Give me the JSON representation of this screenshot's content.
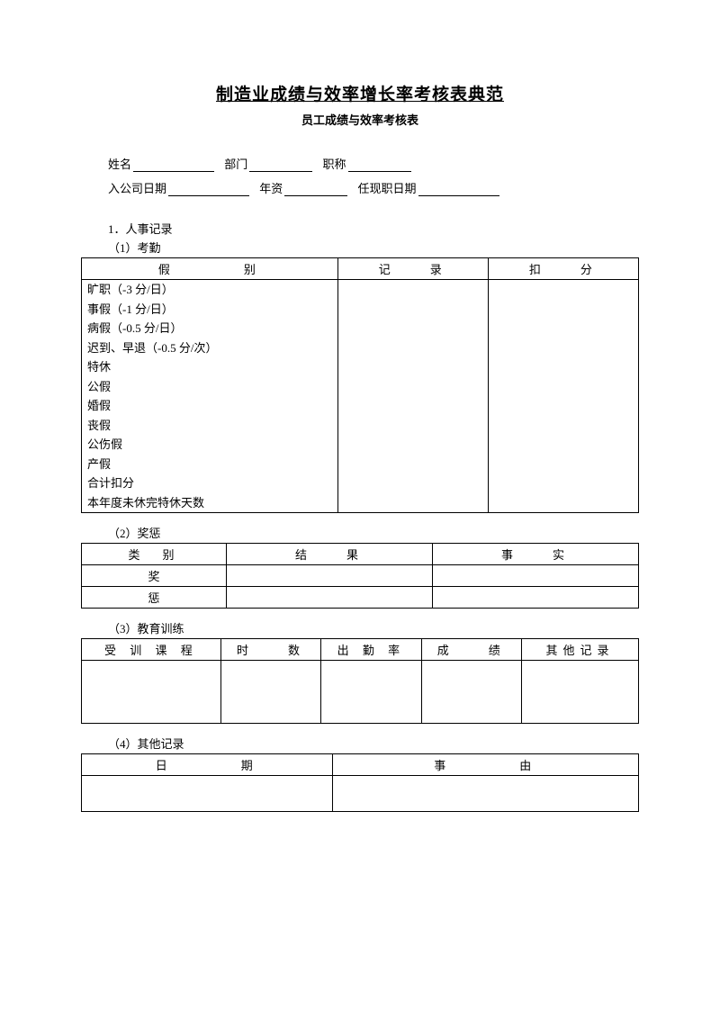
{
  "title": "制造业成绩与效率增长率考核表典范",
  "subtitle": "员工成绩与效率考核表",
  "info": {
    "row1": {
      "name_label": "姓名",
      "dept_label": "部门",
      "title_label": "职称"
    },
    "row2": {
      "hire_date_label": "入公司日期",
      "seniority_label": "年资",
      "position_date_label": "任现职日期"
    }
  },
  "section1": {
    "number_label": "1．人事记录",
    "sub1": {
      "label": "（1）考勤",
      "headers": {
        "type": "假　　　　别",
        "record": "记　　录",
        "deduct": "扣　　分"
      },
      "rows": [
        "旷职（-3 分/日）",
        "事假（-1 分/日）",
        "病假（-0.5 分/日）",
        "迟到、早退（-0.5 分/次）",
        "特休",
        "公假",
        "婚假",
        "丧假",
        "公伤假",
        "产假",
        "合计扣分",
        "本年度未休完特休天数"
      ]
    },
    "sub2": {
      "label": "（2）奖惩",
      "headers": {
        "type": "类　别",
        "result": "结　　果",
        "fact": "事　　实"
      },
      "rows": {
        "reward": "奖",
        "punish": "惩"
      }
    },
    "sub3": {
      "label": "（3）教育训练",
      "headers": {
        "course": "受 训 课 程",
        "hours": "时　　数",
        "attendance": "出 勤 率",
        "score": "成　　绩",
        "other": "其他记录"
      }
    },
    "sub4": {
      "label": "（4）其他记录",
      "headers": {
        "date": "日　　　　期",
        "reason": "事　　　　由"
      }
    }
  }
}
